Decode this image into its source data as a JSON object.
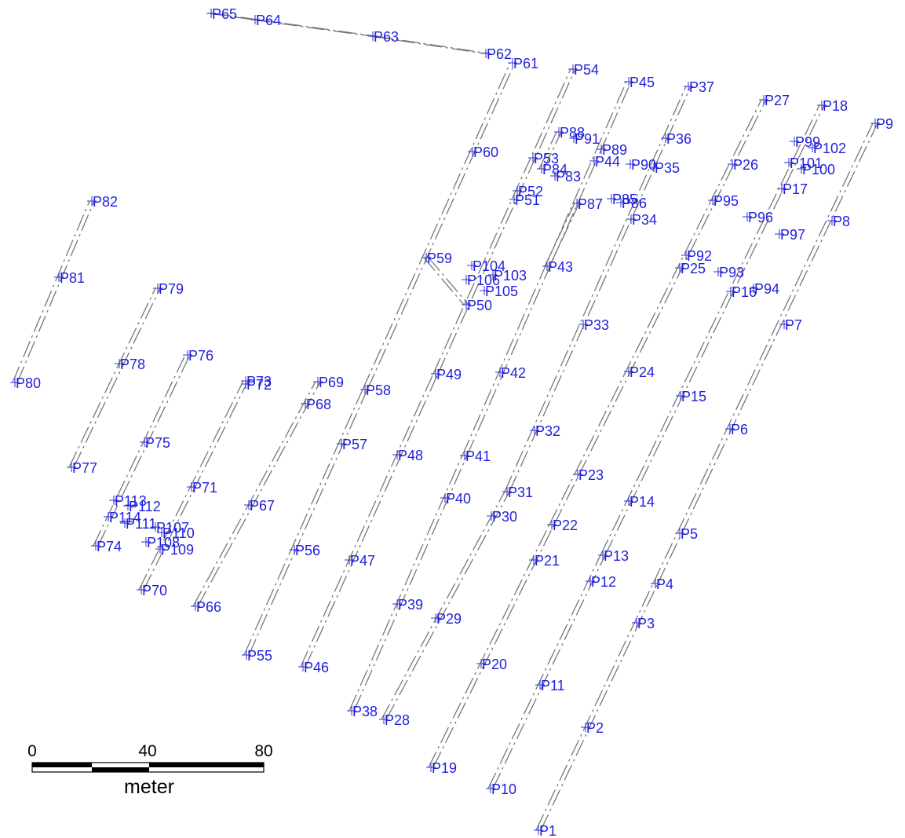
{
  "colors": {
    "point": "#1f1fdc",
    "track": "#777777",
    "background": "#ffffff"
  },
  "scale_bar": {
    "ticks": [
      "0",
      "40",
      "80"
    ],
    "unit": "meter"
  },
  "points": [
    "P1",
    "P2",
    "P3",
    "P4",
    "P5",
    "P6",
    "P7",
    "P8",
    "P9",
    "P10",
    "P11",
    "P12",
    "P13",
    "P14",
    "P15",
    "P16",
    "P17",
    "P18",
    "P19",
    "P20",
    "P21",
    "P22",
    "P23",
    "P24",
    "P25",
    "P26",
    "P27",
    "P28",
    "P29",
    "P30",
    "P31",
    "P32",
    "P33",
    "P34",
    "P35",
    "P36",
    "P37",
    "P38",
    "P39",
    "P40",
    "P41",
    "P42",
    "P43",
    "P44",
    "P45",
    "P46",
    "P47",
    "P48",
    "P49",
    "P50",
    "P51",
    "P52",
    "P53",
    "P54",
    "P55",
    "P56",
    "P57",
    "P58",
    "P59",
    "P60",
    "P61",
    "P62",
    "P63",
    "P64",
    "P65",
    "P66",
    "P67",
    "P68",
    "P69",
    "P70",
    "P71",
    "P72",
    "P73",
    "P74",
    "P75",
    "P76",
    "P77",
    "P78",
    "P79",
    "P80",
    "P81",
    "P82",
    "P83",
    "P84",
    "P85",
    "P86",
    "P87",
    "P88",
    "P89",
    "P90",
    "P91",
    "P92",
    "P93",
    "P94",
    "P95",
    "P96",
    "P97",
    "P99",
    "P100",
    "P101",
    "P102",
    "P103",
    "P104",
    "P105",
    "P106",
    "P107",
    "P108",
    "P109",
    "P110",
    "P111",
    "P112",
    "P113",
    "P114"
  ]
}
